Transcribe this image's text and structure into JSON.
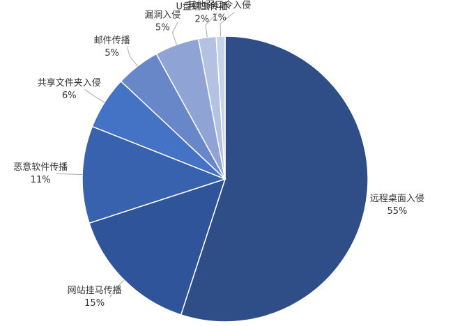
{
  "chart_data": {
    "type": "pie",
    "categories": [
      "远程桌面入侵",
      "网站挂马传播",
      "恶意软件传播",
      "共享文件夹入侵",
      "邮件传播",
      "漏洞入侵",
      "U盘蠕虫传播",
      "其他弱口令入侵"
    ],
    "values": [
      55,
      15,
      11,
      6,
      5,
      5,
      2,
      1
    ],
    "value_labels": [
      "55%",
      "15%",
      "11%",
      "6%",
      "5%",
      "5%",
      "2%",
      "1%"
    ],
    "colors": [
      "#2f4d87",
      "#30549a",
      "#3862ad",
      "#4472c4",
      "#6887c9",
      "#8fa4d5",
      "#b3c2e3",
      "#c8d2eb"
    ]
  }
}
